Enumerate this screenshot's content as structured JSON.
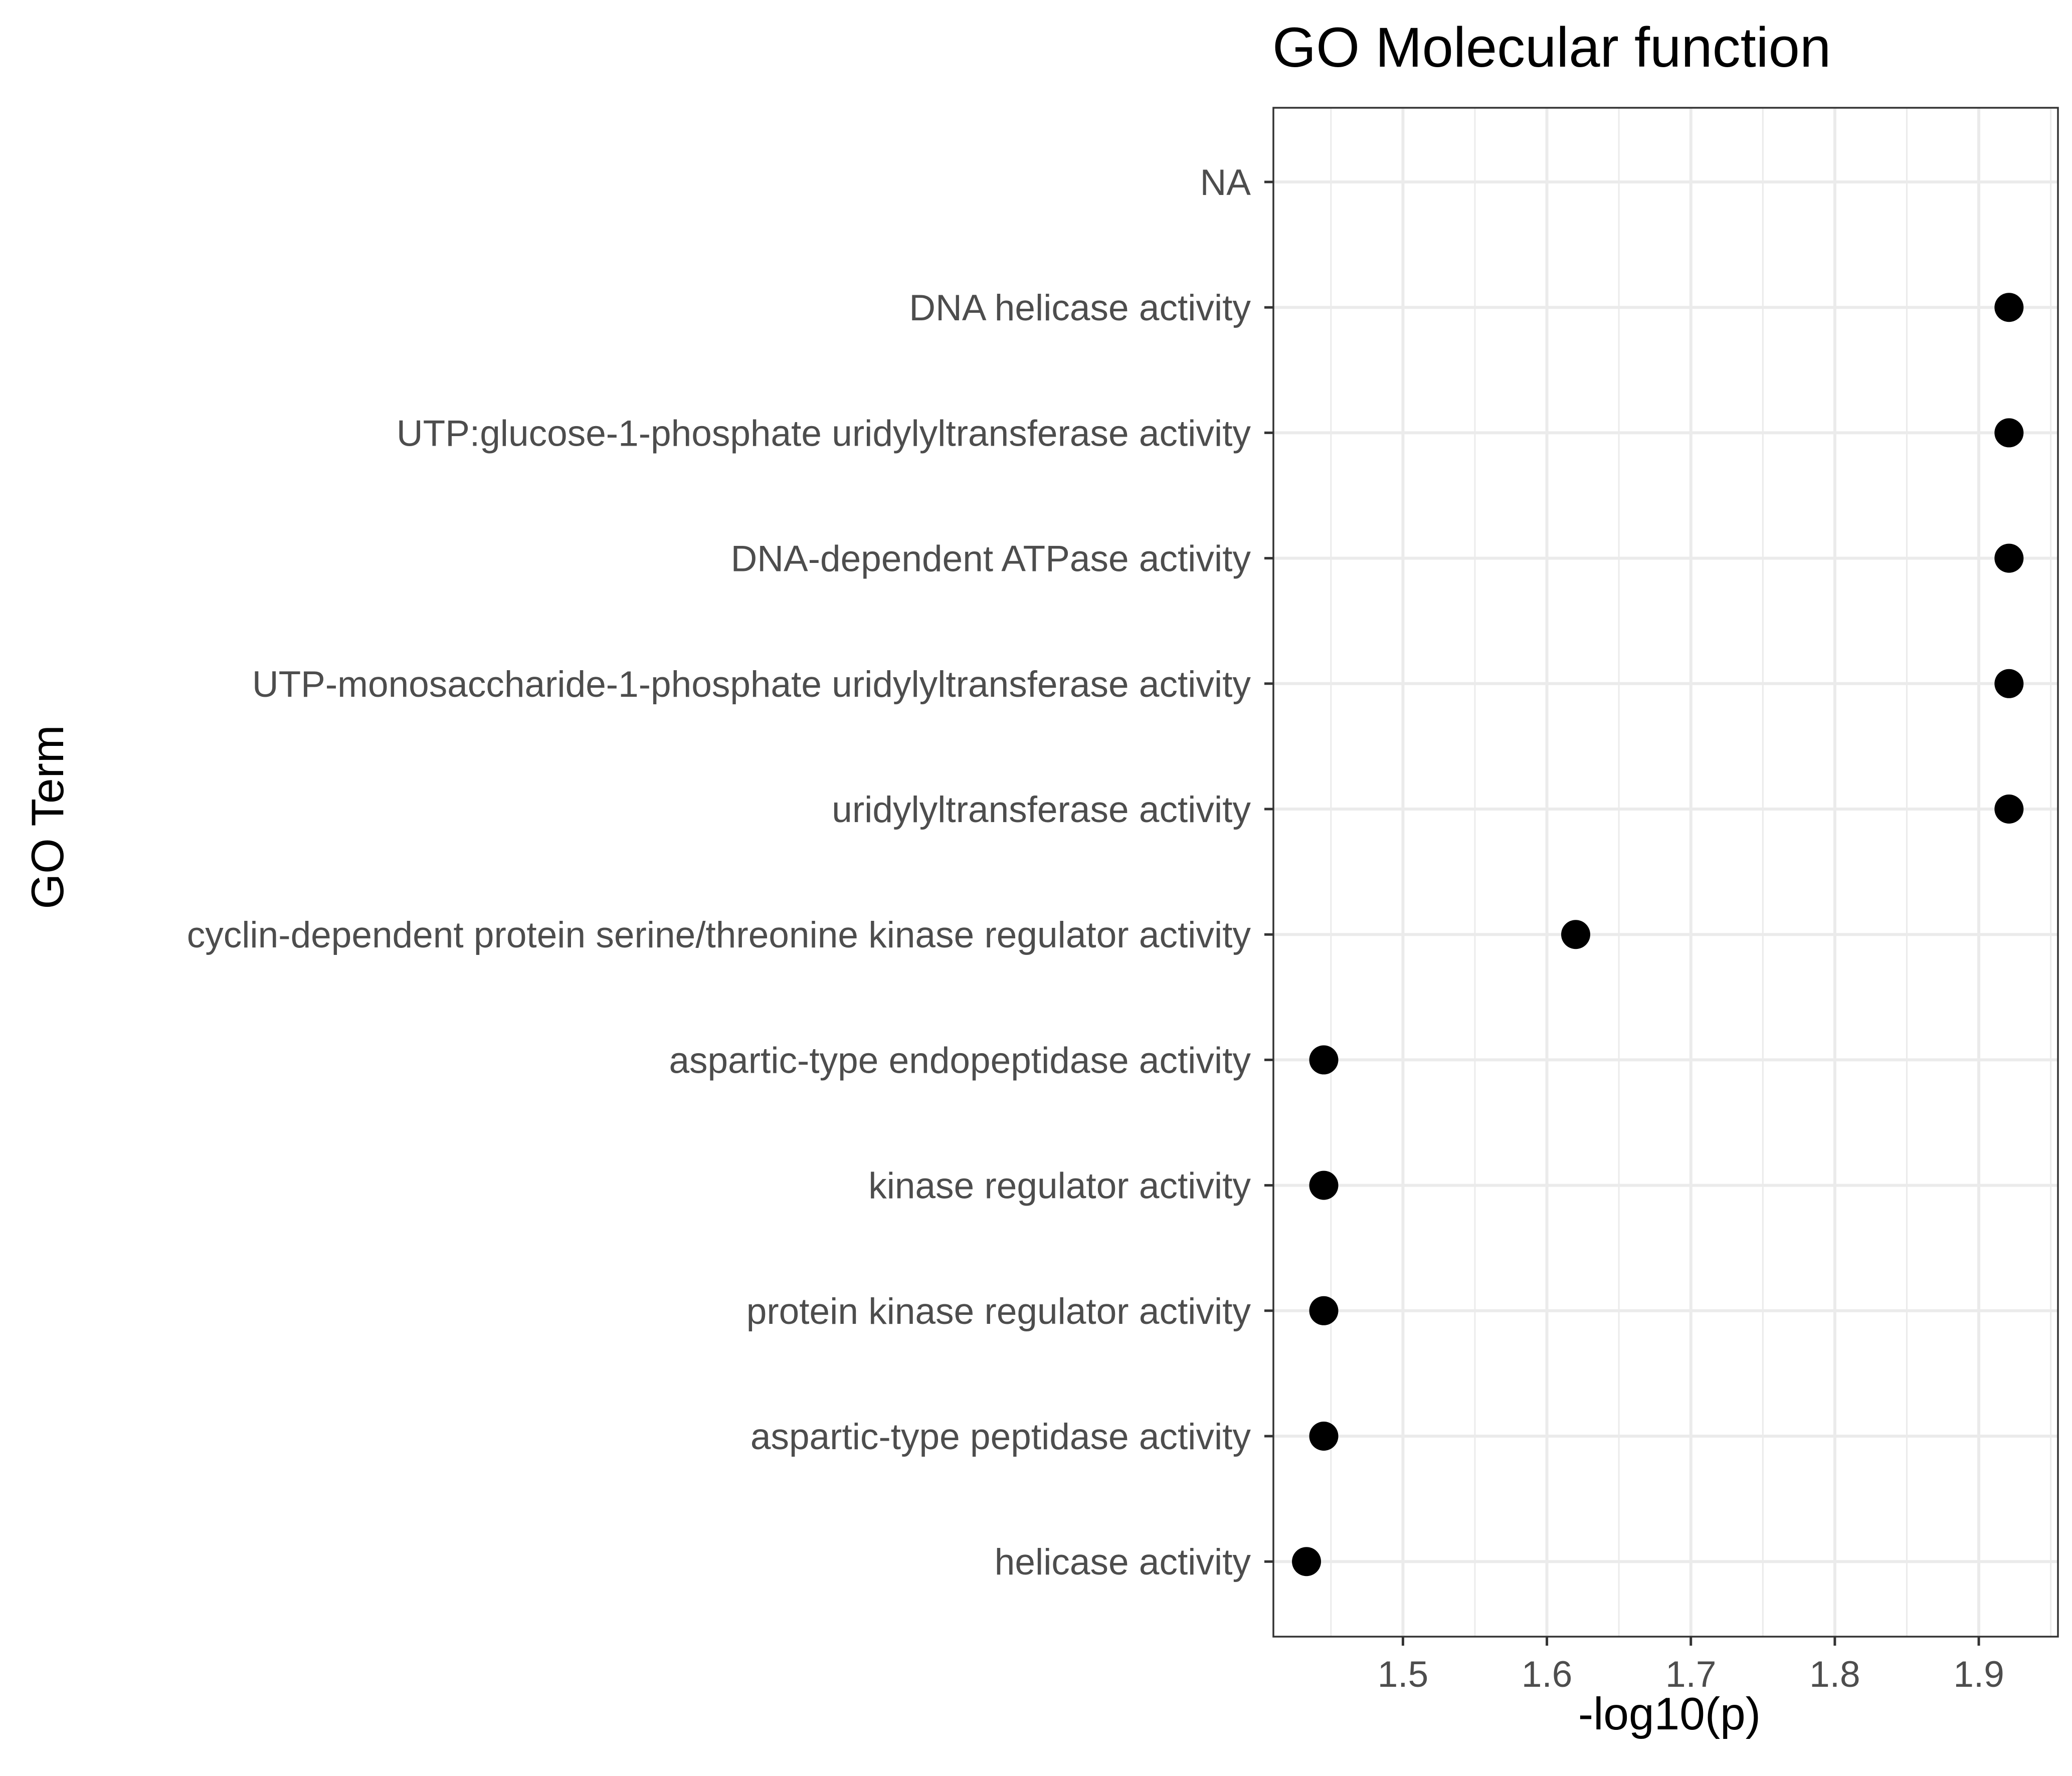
{
  "chart_data": {
    "type": "scatter",
    "title": "GO Molecular function",
    "xlabel": "-log10(p)",
    "ylabel": "GO Term",
    "xlim": [
      1.41,
      1.955
    ],
    "x_ticks": [
      1.5,
      1.6,
      1.7,
      1.8,
      1.9
    ],
    "x_tick_labels": [
      "1.5",
      "1.6",
      "1.7",
      "1.8",
      "1.9"
    ],
    "grid": true,
    "point_color": "#000000",
    "categories": [
      "NA",
      "DNA helicase activity",
      "UTP:glucose-1-phosphate uridylyltransferase activity",
      "DNA-dependent ATPase activity",
      "UTP-monosaccharide-1-phosphate uridylyltransferase activity",
      "uridylyltransferase activity",
      "cyclin-dependent protein serine/threonine kinase regulator activity",
      "aspartic-type endopeptidase activity",
      "kinase regulator activity",
      "protein kinase regulator activity",
      "aspartic-type peptidase activity",
      "helicase activity"
    ],
    "values": [
      null,
      1.921,
      1.921,
      1.921,
      1.921,
      1.921,
      1.62,
      1.445,
      1.445,
      1.445,
      1.445,
      1.433
    ]
  }
}
